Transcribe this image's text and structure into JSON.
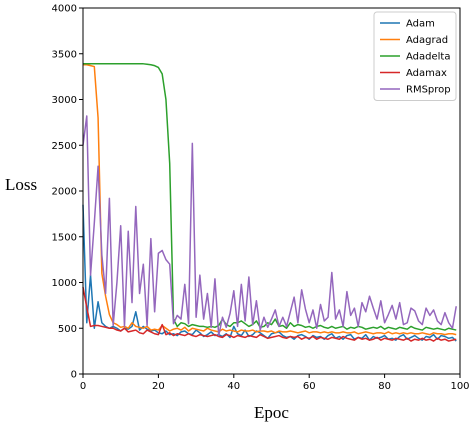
{
  "chart_data": {
    "type": "line",
    "title": "",
    "xlabel": "Epoc",
    "ylabel": "Loss",
    "xlim": [
      0,
      100
    ],
    "ylim": [
      0,
      4000
    ],
    "xticks": [
      0,
      20,
      40,
      60,
      80,
      100
    ],
    "yticks": [
      0,
      500,
      1000,
      1500,
      2000,
      2500,
      3000,
      3500,
      4000
    ],
    "grid": false,
    "legend_position": "top-right",
    "x": [
      0,
      1,
      2,
      3,
      4,
      5,
      6,
      7,
      8,
      9,
      10,
      11,
      12,
      13,
      14,
      15,
      16,
      17,
      18,
      19,
      20,
      21,
      22,
      23,
      24,
      25,
      26,
      27,
      28,
      29,
      30,
      31,
      32,
      33,
      34,
      35,
      36,
      37,
      38,
      39,
      40,
      41,
      42,
      43,
      44,
      45,
      46,
      47,
      48,
      49,
      50,
      51,
      52,
      53,
      54,
      55,
      56,
      57,
      58,
      59,
      60,
      61,
      62,
      63,
      64,
      65,
      66,
      67,
      68,
      69,
      70,
      71,
      72,
      73,
      74,
      75,
      76,
      77,
      78,
      79,
      80,
      81,
      82,
      83,
      84,
      85,
      86,
      87,
      88,
      89,
      90,
      91,
      92,
      93,
      94,
      95,
      96,
      97,
      98,
      99
    ],
    "series": [
      {
        "name": "Adam",
        "color": "#1f77b4",
        "values": [
          1850,
          560,
          1080,
          500,
          790,
          560,
          520,
          500,
          520,
          500,
          470,
          500,
          490,
          520,
          680,
          480,
          520,
          490,
          470,
          480,
          450,
          440,
          470,
          430,
          440,
          420,
          460,
          470,
          440,
          430,
          480,
          450,
          410,
          430,
          460,
          420,
          430,
          410,
          440,
          400,
          520,
          440,
          420,
          480,
          410,
          430,
          470,
          450,
          420,
          390,
          440,
          450,
          460,
          420,
          400,
          410,
          380,
          420,
          430,
          410,
          380,
          420,
          400,
          410,
          380,
          420,
          440,
          390,
          410,
          380,
          420,
          430,
          380,
          400,
          390,
          430,
          370,
          410,
          390,
          400,
          420,
          380,
          390,
          370,
          410,
          430,
          380,
          400,
          420,
          390,
          370,
          410,
          400,
          430,
          380,
          420,
          410,
          390,
          400,
          360
        ]
      },
      {
        "name": "Adagrad",
        "color": "#ff7f0e",
        "values": [
          3380,
          3380,
          3370,
          3360,
          2800,
          1100,
          850,
          650,
          560,
          540,
          510,
          520,
          500,
          560,
          520,
          510,
          500,
          520,
          480,
          490,
          480,
          530,
          500,
          470,
          490,
          500,
          480,
          510,
          470,
          500,
          490,
          480,
          470,
          500,
          480,
          470,
          460,
          490,
          470,
          480,
          470,
          460,
          480,
          470,
          470,
          480,
          460,
          470,
          470,
          460,
          470,
          450,
          470,
          460,
          460,
          470,
          460,
          450,
          460,
          470,
          450,
          460,
          460,
          450,
          460,
          450,
          460,
          450,
          450,
          460,
          450,
          450,
          460,
          440,
          450,
          460,
          450,
          440,
          450,
          450,
          440,
          460,
          440,
          450,
          440,
          450,
          440,
          450,
          440,
          440,
          450,
          440,
          430,
          450,
          440,
          440,
          430,
          440,
          440,
          430
        ]
      },
      {
        "name": "Adadelta",
        "color": "#2ca02c",
        "values": [
          3390,
          3390,
          3390,
          3390,
          3390,
          3390,
          3390,
          3390,
          3390,
          3390,
          3390,
          3390,
          3390,
          3390,
          3390,
          3390,
          3390,
          3385,
          3380,
          3370,
          3350,
          3280,
          3000,
          2300,
          600,
          520,
          560,
          550,
          520,
          540,
          530,
          520,
          520,
          510,
          520,
          510,
          530,
          600,
          540,
          520,
          560,
          560,
          580,
          550,
          520,
          540,
          580,
          510,
          520,
          560,
          540,
          600,
          520,
          530,
          500,
          560,
          520,
          540,
          530,
          510,
          520,
          500,
          520,
          530,
          510,
          500,
          520,
          500,
          510,
          520,
          490,
          510,
          500,
          520,
          510,
          490,
          500,
          510,
          500,
          520,
          490,
          510,
          500,
          490,
          510,
          500,
          490,
          520,
          500,
          490,
          480,
          510,
          500,
          490,
          500,
          490,
          480,
          500,
          490,
          480
        ]
      },
      {
        "name": "Adamax",
        "color": "#d62728",
        "values": [
          950,
          730,
          520,
          530,
          530,
          520,
          510,
          500,
          500,
          480,
          470,
          500,
          460,
          470,
          480,
          450,
          440,
          480,
          460,
          440,
          430,
          540,
          430,
          450,
          420,
          440,
          430,
          420,
          440,
          420,
          410,
          430,
          420,
          410,
          420,
          430,
          410,
          400,
          430,
          420,
          400,
          420,
          410,
          400,
          420,
          410,
          400,
          430,
          410,
          390,
          400,
          410,
          420,
          400,
          390,
          410,
          400,
          410,
          380,
          400,
          390,
          410,
          380,
          400,
          390,
          380,
          400,
          390,
          380,
          410,
          390,
          380,
          370,
          400,
          380,
          390,
          370,
          380,
          400,
          370,
          390,
          380,
          370,
          390,
          380,
          370,
          390,
          360,
          380,
          370,
          390,
          370,
          380,
          360,
          390,
          370,
          380,
          360,
          370,
          380
        ]
      },
      {
        "name": "RMSprop",
        "color": "#9467bd",
        "values": [
          2500,
          2820,
          1080,
          1650,
          2270,
          1300,
          880,
          1920,
          530,
          1000,
          1620,
          520,
          1560,
          780,
          1830,
          880,
          1200,
          530,
          1480,
          680,
          1320,
          1350,
          1250,
          1200,
          550,
          640,
          600,
          980,
          550,
          2520,
          620,
          1080,
          600,
          880,
          510,
          1040,
          420,
          620,
          510,
          660,
          910,
          520,
          980,
          580,
          1060,
          540,
          800,
          480,
          620,
          510,
          600,
          700,
          520,
          620,
          520,
          680,
          840,
          560,
          920,
          710,
          560,
          700,
          500,
          760,
          580,
          620,
          1110,
          600,
          700,
          520,
          900,
          640,
          720,
          520,
          780,
          680,
          850,
          720,
          600,
          800,
          560,
          650,
          750,
          600,
          780,
          540,
          560,
          720,
          690,
          580,
          540,
          720,
          640,
          700,
          580,
          540,
          670,
          560,
          500,
          740
        ]
      }
    ]
  }
}
